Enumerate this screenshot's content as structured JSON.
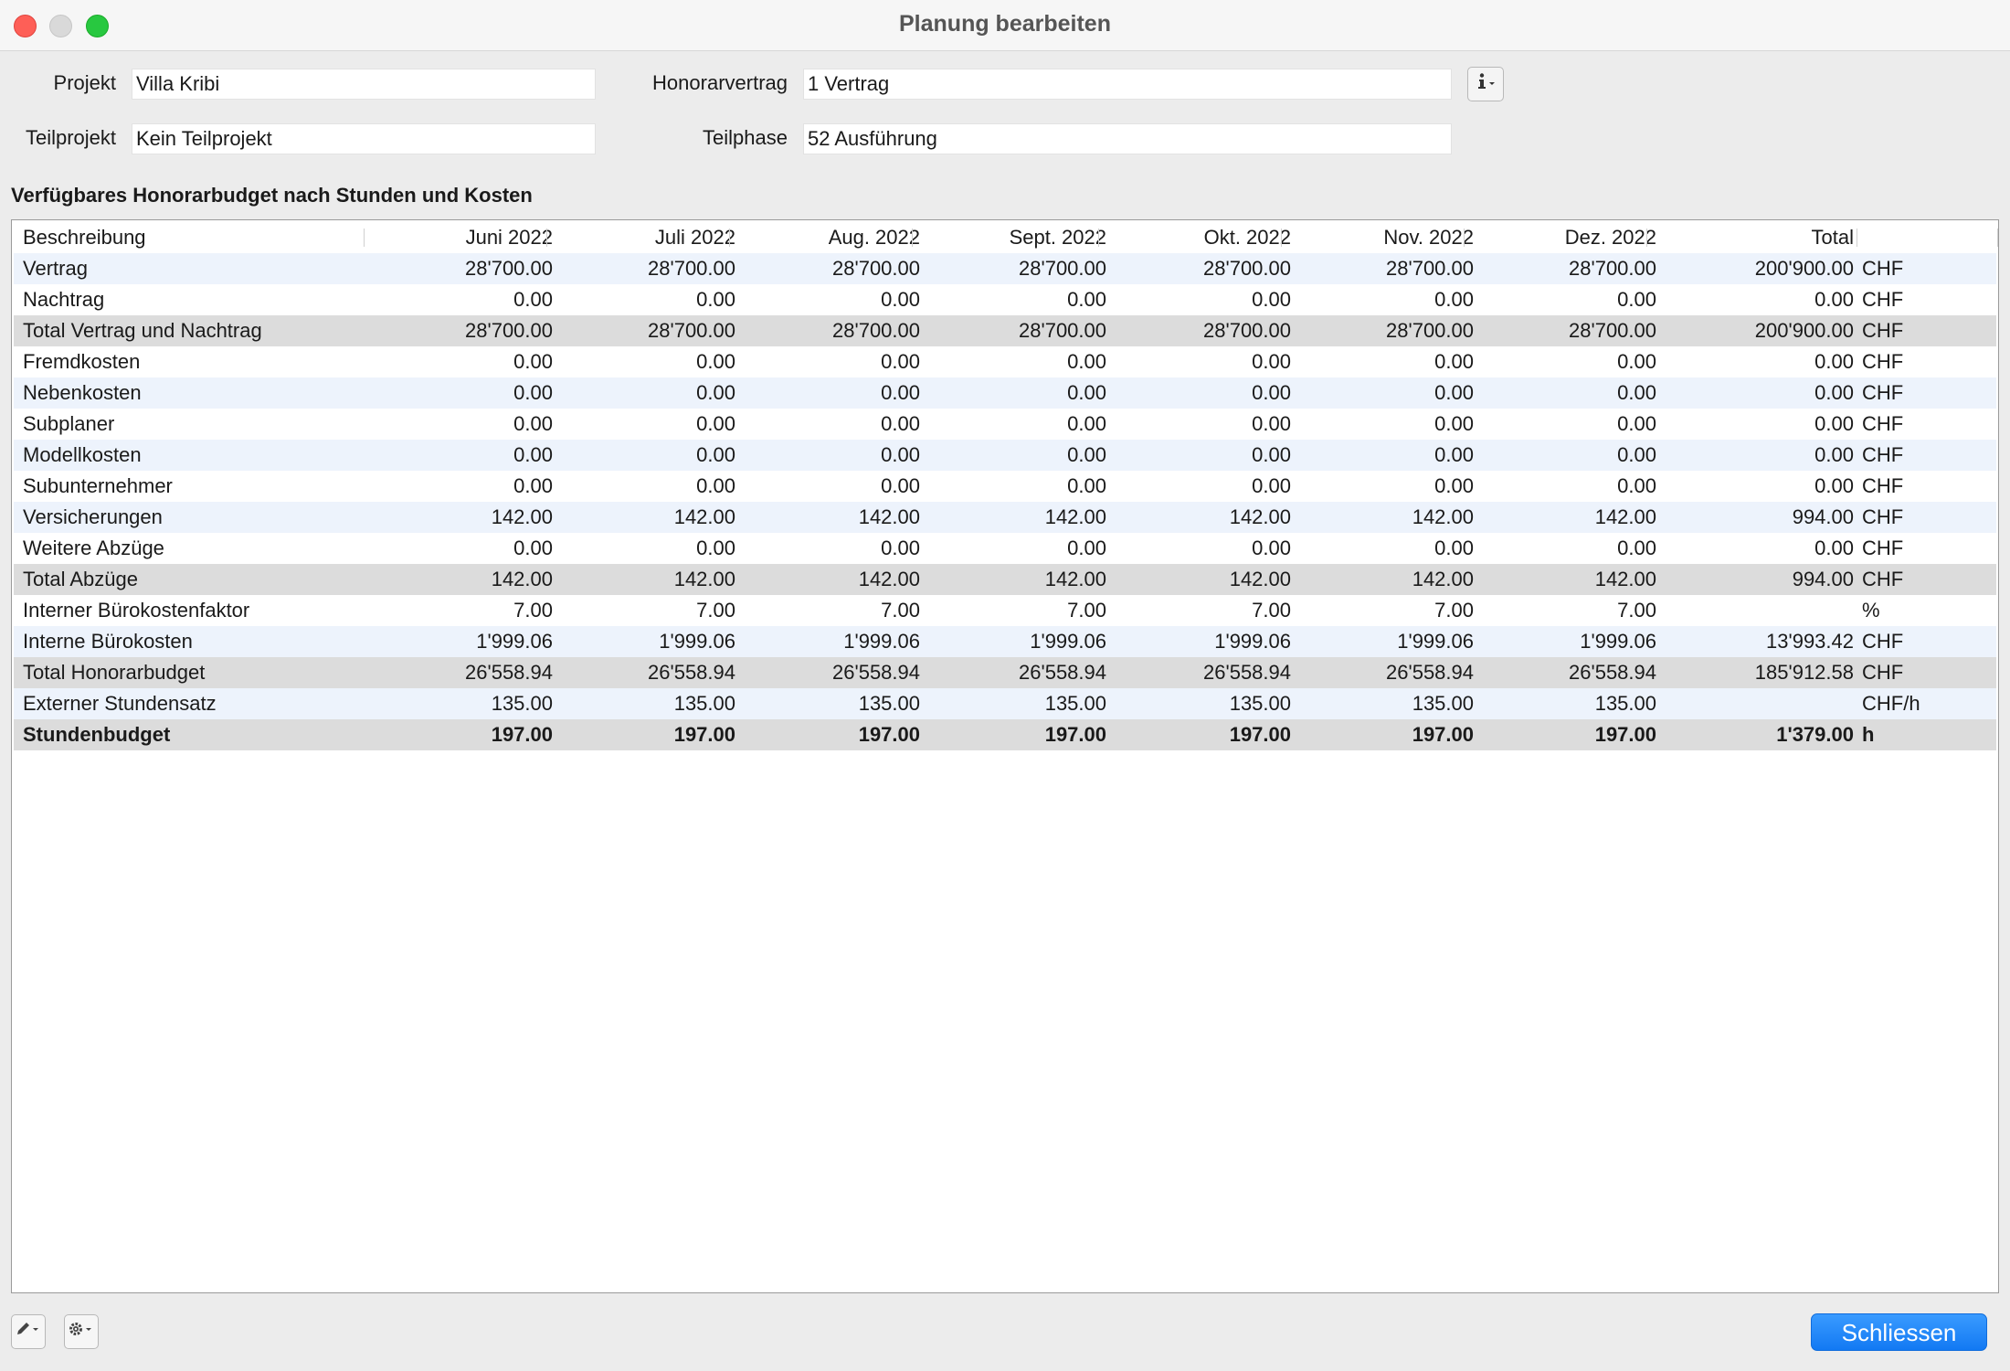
{
  "window": {
    "title": "Planung bearbeiten"
  },
  "form": {
    "projekt_label": "Projekt",
    "projekt_value": "Villa Kribi",
    "teilprojekt_label": "Teilprojekt",
    "teilprojekt_value": "Kein Teilprojekt",
    "honorarvertrag_label": "Honorarvertrag",
    "honorarvertrag_value": "1 Vertrag",
    "teilphase_label": "Teilphase",
    "teilphase_value": "52 Ausführung",
    "info_icon": "info-icon"
  },
  "section_title": "Verfügbares Honorarbudget nach Stunden und Kosten",
  "table": {
    "headers": [
      "Beschreibung",
      "Juni 2022",
      "Juli 2022",
      "Aug. 2022",
      "Sept. 2022",
      "Okt. 2022",
      "Nov. 2022",
      "Dez. 2022",
      "Total",
      ""
    ],
    "rows": [
      {
        "label": "Vertrag",
        "values": [
          "28'700.00",
          "28'700.00",
          "28'700.00",
          "28'700.00",
          "28'700.00",
          "28'700.00",
          "28'700.00",
          "200'900.00"
        ],
        "unit": "CHF",
        "style": "alt"
      },
      {
        "label": "Nachtrag",
        "values": [
          "0.00",
          "0.00",
          "0.00",
          "0.00",
          "0.00",
          "0.00",
          "0.00",
          "0.00"
        ],
        "unit": "CHF",
        "style": "plain"
      },
      {
        "label": "Total Vertrag und Nachtrag",
        "values": [
          "28'700.00",
          "28'700.00",
          "28'700.00",
          "28'700.00",
          "28'700.00",
          "28'700.00",
          "28'700.00",
          "200'900.00"
        ],
        "unit": "CHF",
        "style": "total"
      },
      {
        "label": "Fremdkosten",
        "values": [
          "0.00",
          "0.00",
          "0.00",
          "0.00",
          "0.00",
          "0.00",
          "0.00",
          "0.00"
        ],
        "unit": "CHF",
        "style": "plain"
      },
      {
        "label": "Nebenkosten",
        "values": [
          "0.00",
          "0.00",
          "0.00",
          "0.00",
          "0.00",
          "0.00",
          "0.00",
          "0.00"
        ],
        "unit": "CHF",
        "style": "alt"
      },
      {
        "label": "Subplaner",
        "values": [
          "0.00",
          "0.00",
          "0.00",
          "0.00",
          "0.00",
          "0.00",
          "0.00",
          "0.00"
        ],
        "unit": "CHF",
        "style": "plain"
      },
      {
        "label": "Modellkosten",
        "values": [
          "0.00",
          "0.00",
          "0.00",
          "0.00",
          "0.00",
          "0.00",
          "0.00",
          "0.00"
        ],
        "unit": "CHF",
        "style": "alt"
      },
      {
        "label": "Subunternehmer",
        "values": [
          "0.00",
          "0.00",
          "0.00",
          "0.00",
          "0.00",
          "0.00",
          "0.00",
          "0.00"
        ],
        "unit": "CHF",
        "style": "plain"
      },
      {
        "label": "Versicherungen",
        "values": [
          "142.00",
          "142.00",
          "142.00",
          "142.00",
          "142.00",
          "142.00",
          "142.00",
          "994.00"
        ],
        "unit": "CHF",
        "style": "alt"
      },
      {
        "label": "Weitere Abzüge",
        "values": [
          "0.00",
          "0.00",
          "0.00",
          "0.00",
          "0.00",
          "0.00",
          "0.00",
          "0.00"
        ],
        "unit": "CHF",
        "style": "plain"
      },
      {
        "label": "Total Abzüge",
        "values": [
          "142.00",
          "142.00",
          "142.00",
          "142.00",
          "142.00",
          "142.00",
          "142.00",
          "994.00"
        ],
        "unit": "CHF",
        "style": "total"
      },
      {
        "label": "Interner Bürokostenfaktor",
        "values": [
          "7.00",
          "7.00",
          "7.00",
          "7.00",
          "7.00",
          "7.00",
          "7.00",
          ""
        ],
        "unit": "%",
        "style": "plain"
      },
      {
        "label": "Interne Bürokosten",
        "values": [
          "1'999.06",
          "1'999.06",
          "1'999.06",
          "1'999.06",
          "1'999.06",
          "1'999.06",
          "1'999.06",
          "13'993.42"
        ],
        "unit": "CHF",
        "style": "alt"
      },
      {
        "label": "Total Honorarbudget",
        "values": [
          "26'558.94",
          "26'558.94",
          "26'558.94",
          "26'558.94",
          "26'558.94",
          "26'558.94",
          "26'558.94",
          "185'912.58"
        ],
        "unit": "CHF",
        "style": "total"
      },
      {
        "label": "Externer Stundensatz",
        "values": [
          "135.00",
          "135.00",
          "135.00",
          "135.00",
          "135.00",
          "135.00",
          "135.00",
          ""
        ],
        "unit": "CHF/h",
        "style": "alt"
      },
      {
        "label": "Stundenbudget",
        "values": [
          "197.00",
          "197.00",
          "197.00",
          "197.00",
          "197.00",
          "197.00",
          "197.00",
          "1'379.00"
        ],
        "unit": "h",
        "style": "total bold"
      }
    ]
  },
  "footer": {
    "edit_icon": "pencil-icon",
    "settings_icon": "gear-icon",
    "close_label": "Schliessen"
  },
  "colors": {
    "accent": "#1a7ff5",
    "row_alt": "#edf3fc",
    "row_total": "#dcdcdc"
  }
}
